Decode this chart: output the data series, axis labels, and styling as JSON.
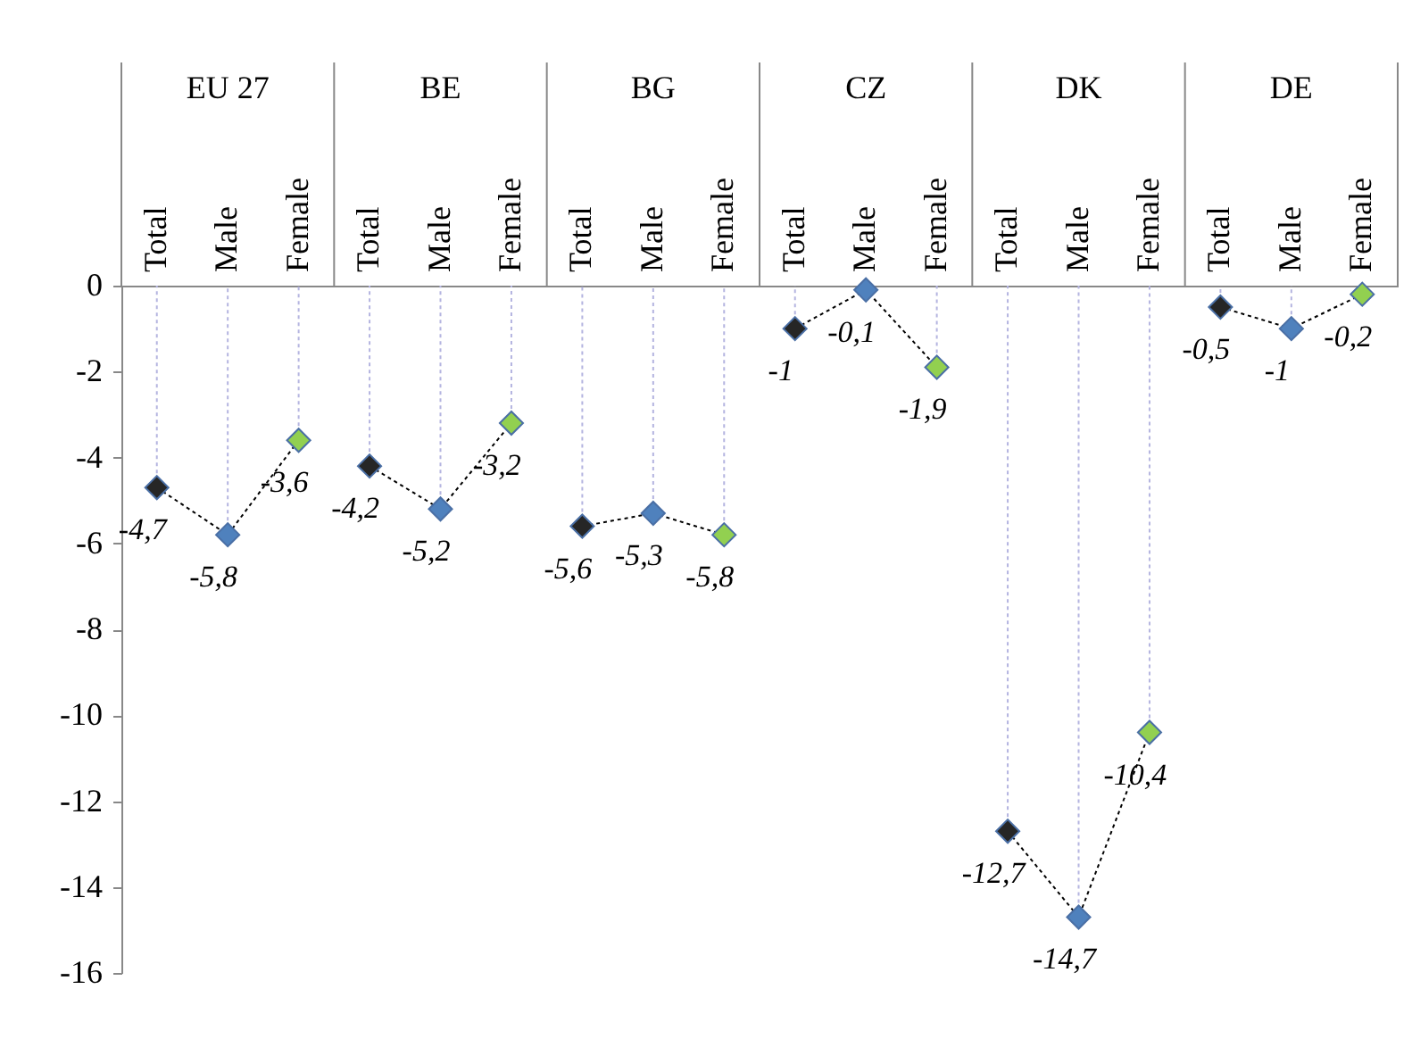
{
  "chart_data": {
    "type": "line",
    "categories": [
      "Total",
      "Male",
      "Female",
      "Total",
      "Male",
      "Female",
      "Total",
      "Male",
      "Female",
      "Total",
      "Male",
      "Female",
      "Total",
      "Male",
      "Female",
      "Total",
      "Male",
      "Female"
    ],
    "annotations": [
      "EU 27",
      "BE",
      "BG",
      "CZ",
      "DK",
      "DE"
    ],
    "values": [
      -4.7,
      -5.8,
      -3.6,
      -4.2,
      -5.2,
      -3.2,
      -5.6,
      -5.3,
      -5.8,
      -1,
      -0.1,
      -1.9,
      -12.7,
      -14.7,
      -10.4,
      -0.5,
      -1,
      -0.2
    ],
    "value_labels": [
      "-4,7",
      "-5,8",
      "-3,6",
      "-4,2",
      "-5,2",
      "-3,2",
      "-5,6",
      "-5,3",
      "-5,8",
      "-1",
      "-0,1",
      "-1,9",
      "-12,7",
      "-14,7",
      "-10,4",
      "-0,5",
      "-1",
      "-0,2"
    ],
    "colors": [
      "#262626",
      "#4f81bd",
      "#92d050",
      "#262626",
      "#4f81bd",
      "#92d050",
      "#262626",
      "#4f81bd",
      "#92d050",
      "#262626",
      "#4f81bd",
      "#92d050",
      "#262626",
      "#4f81bd",
      "#92d050",
      "#262626",
      "#4f81bd",
      "#92d050"
    ],
    "ylim": [
      -16,
      0
    ],
    "yticks": [
      -16,
      -14,
      -12,
      -10,
      -8,
      -6,
      -4,
      -2,
      0
    ],
    "marker": "diamond",
    "line_style": "dotted"
  }
}
